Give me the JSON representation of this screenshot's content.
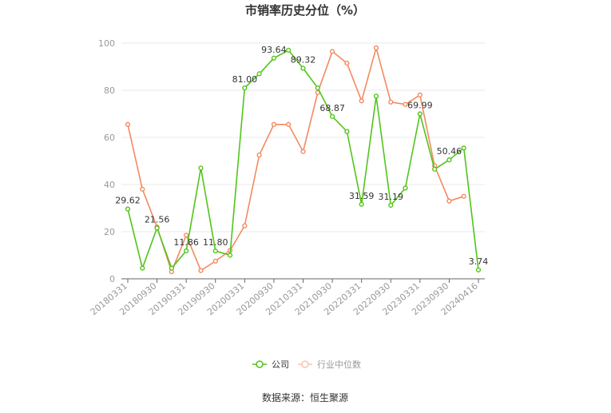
{
  "chart_data": {
    "type": "line",
    "title": "市销率历史分位（%）",
    "xlabel": "",
    "ylabel": "",
    "ylim": [
      0,
      100
    ],
    "yticks": [
      0,
      20,
      40,
      60,
      80,
      100
    ],
    "grid": true,
    "legend_position": "bottom",
    "tick_labels": [
      "20180331",
      "20180930",
      "20190331",
      "20190930",
      "20200331",
      "20200930",
      "20210331",
      "20210930",
      "20220331",
      "20220930",
      "20230331",
      "20230930",
      "20240416"
    ],
    "series": [
      {
        "name": "公司",
        "color": "#52c41a",
        "values": [
          29.62,
          4.5,
          21.56,
          4.5,
          11.86,
          47.0,
          11.8,
          10.0,
          81.0,
          87.0,
          93.64,
          97.0,
          89.32,
          81.0,
          68.87,
          62.5,
          31.59,
          77.5,
          31.19,
          38.5,
          69.99,
          46.5,
          50.46,
          55.5,
          3.74
        ]
      },
      {
        "name": "行业中位数",
        "color": "#f4895f",
        "values": [
          65.5,
          38.0,
          22.0,
          3.0,
          18.5,
          3.5,
          7.5,
          12.0,
          22.5,
          52.5,
          65.5,
          65.5,
          54.0,
          79.0,
          96.5,
          91.5,
          75.5,
          98.0,
          75.0,
          74.0,
          78.0,
          48.0,
          33.0,
          35.0,
          null
        ]
      }
    ],
    "annotations": [
      {
        "index": 0,
        "label": "29.62"
      },
      {
        "index": 2,
        "label": "21.56"
      },
      {
        "index": 4,
        "label": "11.86"
      },
      {
        "index": 6,
        "label": "11.80"
      },
      {
        "index": 8,
        "label": "81.00"
      },
      {
        "index": 10,
        "label": "93.64"
      },
      {
        "index": 12,
        "label": "89.32"
      },
      {
        "index": 14,
        "label": "68.87"
      },
      {
        "index": 16,
        "label": "31.59"
      },
      {
        "index": 18,
        "label": "31.19"
      },
      {
        "index": 20,
        "label": "69.99"
      },
      {
        "index": 22,
        "label": "50.46"
      },
      {
        "index": 24,
        "label": "3.74"
      }
    ]
  },
  "footer": {
    "source": "数据来源：恒生聚源"
  }
}
